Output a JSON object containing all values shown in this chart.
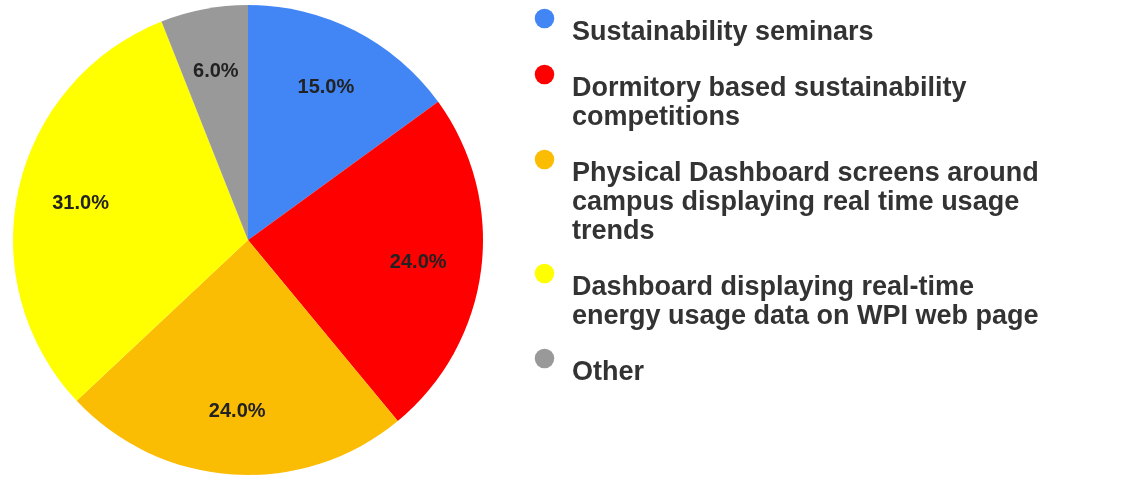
{
  "chart_data": {
    "type": "pie",
    "categories": [
      "Sustainability seminars",
      "Dormitory based sustainability competitions",
      "Physical Dashboard screens around campus displaying real time usage trends",
      "Dashboard displaying real-time energy usage data on WPI web page",
      "Other"
    ],
    "values": [
      15,
      24,
      24,
      31,
      6
    ],
    "colors": [
      "#4285f4",
      "#ff0000",
      "#fbbc04",
      "#ffff00",
      "#999999"
    ],
    "value_labels": [
      "15.0%",
      "24.0%",
      "24.0%",
      "31.0%",
      "6.0%"
    ],
    "legend": "right"
  }
}
